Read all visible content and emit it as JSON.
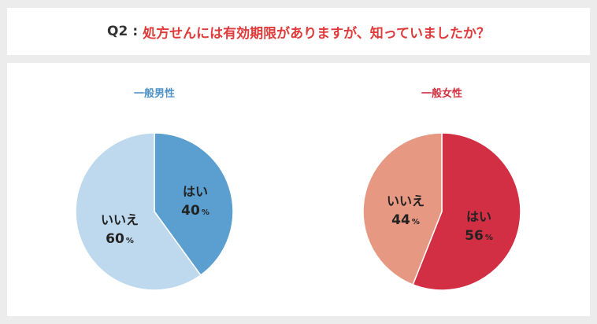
{
  "header": {
    "label": "Q2",
    "separator": ":",
    "question": "処方せんには有効期限がありますが、知っていましたか？"
  },
  "chart_data": [
    {
      "type": "pie",
      "title": "一般男性",
      "title_color": "#4f93c8",
      "slices": [
        {
          "label": "はい",
          "value": 40,
          "display": "40",
          "unit": "%",
          "color": "#5b9fd0"
        },
        {
          "label": "いいえ",
          "value": 60,
          "display": "60",
          "unit": "%",
          "color": "#bed8ed"
        }
      ]
    },
    {
      "type": "pie",
      "title": "一般女性",
      "title_color": "#d2303f",
      "slices": [
        {
          "label": "はい",
          "value": 56,
          "display": "56",
          "unit": "%",
          "color": "#d22f44"
        },
        {
          "label": "いいえ",
          "value": 44,
          "display": "44",
          "unit": "%",
          "color": "#e69882"
        }
      ]
    }
  ]
}
